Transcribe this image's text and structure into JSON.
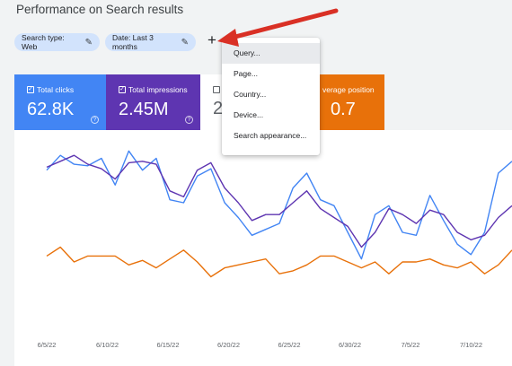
{
  "page": {
    "title": "Performance on Search results"
  },
  "filters": {
    "search_type": "Search type: Web",
    "date": "Date: Last 3 months",
    "add_label": "+"
  },
  "menu": {
    "items": [
      "Query...",
      "Page...",
      "Country...",
      "Device...",
      "Search appearance..."
    ]
  },
  "cards": {
    "clicks": {
      "label": "Total clicks",
      "value": "62.8K",
      "color": "#4285f4"
    },
    "impressions": {
      "label": "Total impressions",
      "value": "2.45M",
      "color": "#5e35b1"
    },
    "ctr": {
      "value_partial": "2"
    },
    "position": {
      "label_partial": "verage position",
      "value_partial": "0.7",
      "color": "#e8710a"
    },
    "help_glyph": "?",
    "check_glyph": "✓"
  },
  "annotation": {
    "arrow_color": "#d93025"
  },
  "chart_data": {
    "type": "line",
    "x_tick_labels": [
      "6/5/22",
      "6/10/22",
      "6/15/22",
      "6/20/22",
      "6/25/22",
      "6/30/22",
      "7/5/22",
      "7/10/22"
    ],
    "series": [
      {
        "color": "#4285f4",
        "values": [
          0.82,
          0.92,
          0.86,
          0.85,
          0.9,
          0.72,
          0.95,
          0.82,
          0.9,
          0.62,
          0.6,
          0.78,
          0.83,
          0.6,
          0.5,
          0.38,
          0.42,
          0.46,
          0.7,
          0.8,
          0.62,
          0.58,
          0.4,
          0.22,
          0.52,
          0.58,
          0.4,
          0.38,
          0.65,
          0.48,
          0.32,
          0.25,
          0.4,
          0.8,
          0.88
        ]
      },
      {
        "color": "#5e35b1",
        "values": [
          0.84,
          0.88,
          0.92,
          0.86,
          0.83,
          0.76,
          0.87,
          0.88,
          0.86,
          0.68,
          0.64,
          0.82,
          0.87,
          0.7,
          0.6,
          0.48,
          0.52,
          0.52,
          0.6,
          0.68,
          0.56,
          0.5,
          0.44,
          0.3,
          0.4,
          0.56,
          0.52,
          0.46,
          0.55,
          0.52,
          0.4,
          0.35,
          0.38,
          0.5,
          0.58
        ]
      },
      {
        "color": "#e8710a",
        "values": [
          0.24,
          0.3,
          0.2,
          0.24,
          0.24,
          0.24,
          0.18,
          0.21,
          0.16,
          0.22,
          0.28,
          0.2,
          0.1,
          0.16,
          0.18,
          0.2,
          0.22,
          0.12,
          0.14,
          0.18,
          0.24,
          0.24,
          0.2,
          0.16,
          0.2,
          0.12,
          0.2,
          0.2,
          0.22,
          0.18,
          0.16,
          0.2,
          0.12,
          0.18,
          0.28
        ]
      }
    ],
    "grid": false
  }
}
